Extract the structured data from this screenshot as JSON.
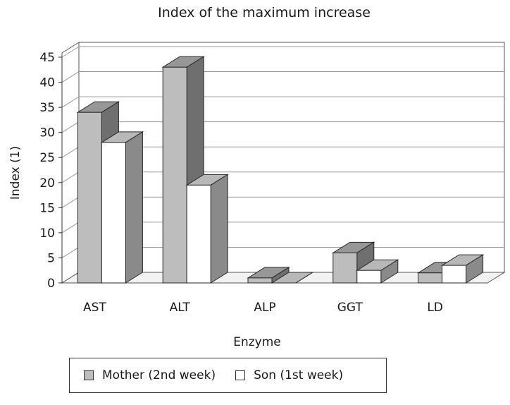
{
  "chart_data": {
    "type": "bar",
    "title": "Index of the maximum increase",
    "xlabel": "Enzyme",
    "ylabel": "Index (1)",
    "categories": [
      "AST",
      "ALT",
      "ALP",
      "GGT",
      "LD"
    ],
    "series": [
      {
        "name": "Mother (2nd week)",
        "values": [
          34,
          43,
          1,
          6,
          2
        ],
        "color": "#bdbdbd"
      },
      {
        "name": "Son (1st week)",
        "values": [
          28,
          19.5,
          0,
          2.5,
          3.5
        ],
        "color": "#ffffff"
      }
    ],
    "ylim": [
      0,
      45
    ],
    "yticks": [
      0,
      5,
      10,
      15,
      20,
      25,
      30,
      35,
      40,
      45
    ],
    "grid": true,
    "style": "3d",
    "legend_position": "bottom"
  }
}
